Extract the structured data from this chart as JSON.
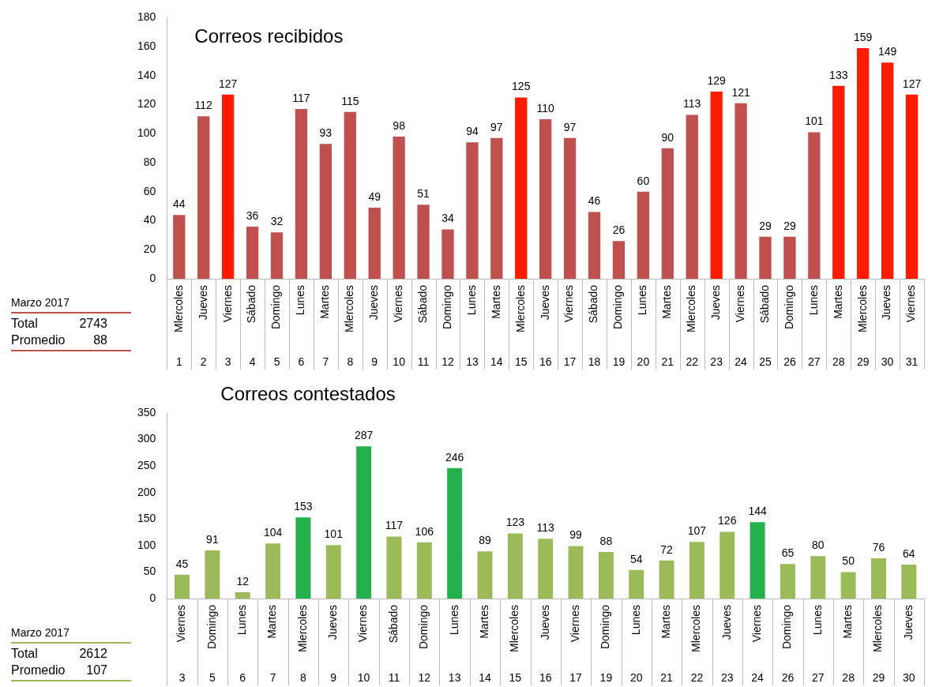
{
  "chart_data": [
    {
      "type": "bar",
      "title": "Correos recibidos",
      "categories": [
        "Mlercoles 1",
        "Jueves 2",
        "Viernes 3",
        "Sábado 4",
        "Domingo 5",
        "Lunes 6",
        "Martes 7",
        "Mlercoles 8",
        "Jueves 9",
        "Viernes 10",
        "Sábado 11",
        "Domingo 12",
        "Lunes 13",
        "Martes 14",
        "Mlercoles 15",
        "Jueves 16",
        "Viernes 17",
        "Sábado 18",
        "Domingo 19",
        "Lunes 20",
        "Martes 21",
        "Mlercoles 22",
        "Jueves 23",
        "Viernes 24",
        "Sábado 25",
        "Domingo 26",
        "Lunes 27",
        "Martes 28",
        "Mlercoles 29",
        "Jueves 30",
        "Viernes 31"
      ],
      "values": [
        44,
        112,
        127,
        36,
        32,
        117,
        93,
        115,
        49,
        98,
        51,
        34,
        94,
        97,
        125,
        110,
        97,
        46,
        26,
        60,
        90,
        113,
        129,
        121,
        29,
        29,
        101,
        133,
        159,
        149,
        127
      ],
      "colors": [
        "#c0504d",
        "#c0504d",
        "#ff1a00",
        "#c0504d",
        "#c0504d",
        "#c0504d",
        "#c0504d",
        "#c0504d",
        "#c0504d",
        "#c0504d",
        "#c0504d",
        "#c0504d",
        "#c0504d",
        "#c0504d",
        "#ff1a00",
        "#c0504d",
        "#c0504d",
        "#c0504d",
        "#c0504d",
        "#c0504d",
        "#c0504d",
        "#c0504d",
        "#ff1a00",
        "#c0504d",
        "#c0504d",
        "#c0504d",
        "#c0504d",
        "#ff1a00",
        "#ff1a00",
        "#ff1a00",
        "#ff1a00"
      ],
      "ylim": [
        0,
        180
      ],
      "yticks": [
        0,
        20,
        40,
        60,
        80,
        100,
        120,
        140,
        160,
        180
      ],
      "grid": false,
      "legend": false,
      "data_labels": true,
      "annotations": [
        "Marzo 2017",
        "Total 2743",
        "Promedio 88"
      ]
    },
    {
      "type": "bar",
      "title": "Correos contestados",
      "categories": [
        "Viernes 3",
        "Domingo 5",
        "Lunes 6",
        "Martes 7",
        "Mlercoles 8",
        "Jueves 9",
        "Viernes 10",
        "Sábado 11",
        "Domingo 12",
        "Lunes 13",
        "Martes 14",
        "Mlercoles 15",
        "Jueves 16",
        "Viernes 17",
        "Domingo 19",
        "Lunes 20",
        "Martes 21",
        "Mlercoles 22",
        "Jueves 23",
        "Viernes 24",
        "Domingo 26",
        "Lunes 27",
        "Martes 28",
        "Mlercoles 29",
        "Jueves 30"
      ],
      "values": [
        45,
        91,
        12,
        104,
        153,
        101,
        287,
        117,
        106,
        246,
        89,
        123,
        113,
        99,
        88,
        54,
        72,
        107,
        126,
        144,
        65,
        80,
        50,
        76,
        64
      ],
      "colors": [
        "#9bbb59",
        "#9bbb59",
        "#9bbb59",
        "#9bbb59",
        "#22b14c",
        "#9bbb59",
        "#22b14c",
        "#9bbb59",
        "#9bbb59",
        "#22b14c",
        "#9bbb59",
        "#9bbb59",
        "#9bbb59",
        "#9bbb59",
        "#9bbb59",
        "#9bbb59",
        "#9bbb59",
        "#9bbb59",
        "#9bbb59",
        "#22b14c",
        "#9bbb59",
        "#9bbb59",
        "#9bbb59",
        "#9bbb59",
        "#9bbb59"
      ],
      "ylim": [
        0,
        350
      ],
      "yticks": [
        0,
        50,
        100,
        150,
        200,
        250,
        300,
        350
      ],
      "grid": false,
      "legend": false,
      "data_labels": true,
      "annotations": [
        "Marzo 2017",
        "Total 2612",
        "Promedio 107"
      ]
    }
  ]
}
